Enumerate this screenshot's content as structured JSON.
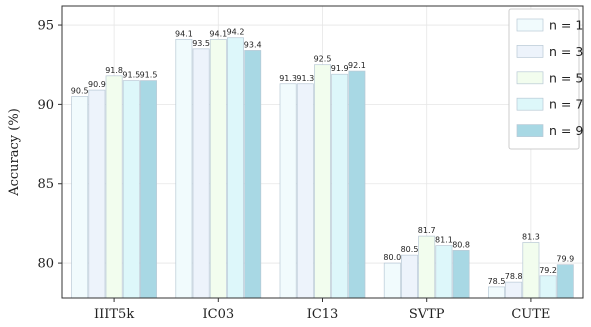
{
  "chart_data": {
    "type": "bar",
    "ylabel": "Accuracy (%)",
    "ylim": [
      77.8,
      96.2
    ],
    "yticks": [
      "80",
      "85",
      "90",
      "95"
    ],
    "grid": true,
    "legend_position": "top-right",
    "categories": [
      "IIIT5k",
      "IC03",
      "IC13",
      "SVTP",
      "CUTE"
    ],
    "series": [
      {
        "name": "n = 1",
        "color": "#f1fbfd",
        "values": [
          90.5,
          94.1,
          91.3,
          80.0,
          78.5
        ]
      },
      {
        "name": "n = 3",
        "color": "#edf3fb",
        "values": [
          90.9,
          93.5,
          91.3,
          80.5,
          78.8
        ]
      },
      {
        "name": "n = 5",
        "color": "#f2fdee",
        "values": [
          91.8,
          94.1,
          92.5,
          81.7,
          81.3
        ]
      },
      {
        "name": "n = 7",
        "color": "#ddf7fa",
        "values": [
          91.5,
          94.2,
          91.9,
          81.1,
          79.2
        ]
      },
      {
        "name": "n = 9",
        "color": "#a8d8e4",
        "values": [
          91.5,
          93.4,
          92.1,
          80.8,
          79.9
        ]
      }
    ]
  }
}
